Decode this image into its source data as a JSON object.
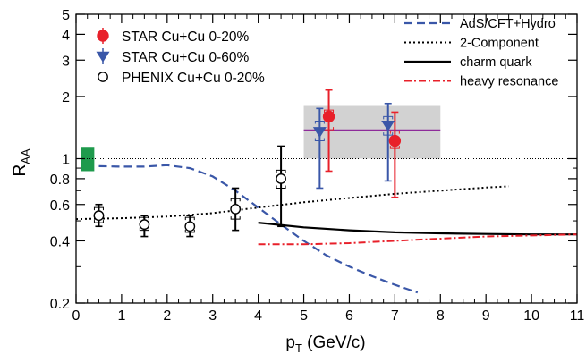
{
  "chart_data": {
    "type": "scatter",
    "xlabel_main": "p",
    "xlabel_sub": "T",
    "xlabel_unit": " (GeV/c)",
    "ylabel_main": "R",
    "ylabel_sub": "AA",
    "xlim": [
      0,
      11
    ],
    "ylim": [
      0.2,
      5
    ],
    "yscale": "log",
    "x_ticks": [
      "0",
      "1",
      "2",
      "3",
      "4",
      "5",
      "6",
      "7",
      "8",
      "9",
      "10",
      "11"
    ],
    "y_ticks": [
      {
        "value": 0.2,
        "label": "0.2"
      },
      {
        "value": 0.4,
        "label": "0.4"
      },
      {
        "value": 0.6,
        "label": "0.6"
      },
      {
        "value": 0.8,
        "label": "0.8"
      },
      {
        "value": 1,
        "label": "1"
      },
      {
        "value": 2,
        "label": "2"
      },
      {
        "value": 3,
        "label": "3"
      },
      {
        "value": 4,
        "label": "4"
      },
      {
        "value": 5,
        "label": "5"
      }
    ],
    "grid": false,
    "reference_line": 1,
    "markers": [
      {
        "name": "STAR Cu+Cu 0-20%",
        "color": "#e8202a",
        "marker": "circle-filled",
        "points": [
          {
            "x": 5.55,
            "y": 1.6,
            "err": [
              0.87,
              2.15
            ],
            "sys": [
              1.38,
              1.72
            ]
          },
          {
            "x": 7.0,
            "y": 1.22,
            "err": [
              0.65,
              1.68
            ],
            "sys": [
              1.12,
              1.36
            ]
          }
        ]
      },
      {
        "name": "STAR Cu+Cu 0-60%",
        "color": "#3a57a8",
        "marker": "triangle-down",
        "points": [
          {
            "x": 5.35,
            "y": 1.35,
            "err": [
              0.72,
              1.75
            ],
            "sys": [
              1.22,
              1.52
            ]
          },
          {
            "x": 6.85,
            "y": 1.45,
            "err": [
              0.78,
              1.85
            ],
            "sys": [
              1.3,
              1.6
            ]
          }
        ]
      },
      {
        "name": "PHENIX Cu+Cu 0-20%",
        "color": "#000000",
        "marker": "circle-open",
        "points": [
          {
            "x": 0.5,
            "y": 0.53,
            "err": [
              0.47,
              0.6
            ],
            "sys": [
              0.49,
              0.58
            ]
          },
          {
            "x": 1.5,
            "y": 0.48,
            "err": [
              0.42,
              0.53
            ],
            "sys": [
              0.45,
              0.52
            ]
          },
          {
            "x": 2.5,
            "y": 0.47,
            "err": [
              0.42,
              0.53
            ],
            "sys": [
              0.44,
              0.52
            ]
          },
          {
            "x": 3.5,
            "y": 0.57,
            "err": [
              0.45,
              0.72
            ],
            "sys": [
              0.51,
              0.64
            ]
          },
          {
            "x": 4.5,
            "y": 0.8,
            "err": [
              0.47,
              1.15
            ],
            "sys": [
              0.72,
              0.88
            ]
          }
        ]
      }
    ],
    "curves": [
      {
        "name": "AdS/CFT+Hydro",
        "color": "#3a57a8",
        "dash": "9,5",
        "width": 2.2,
        "x": [
          0.5,
          1.0,
          1.5,
          2.0,
          2.5,
          3.0,
          3.5,
          4.0,
          4.5,
          5.0,
          5.5,
          6.0,
          6.5,
          7.0,
          7.5
        ],
        "y": [
          0.92,
          0.915,
          0.915,
          0.93,
          0.9,
          0.82,
          0.7,
          0.58,
          0.48,
          0.4,
          0.34,
          0.3,
          0.27,
          0.245,
          0.225
        ]
      },
      {
        "name": "2-Component",
        "color": "#000000",
        "dash": "2,3",
        "width": 2.0,
        "x": [
          0,
          1,
          2,
          3,
          4,
          5,
          6,
          7,
          8,
          9,
          9.5
        ],
        "y": [
          0.51,
          0.515,
          0.525,
          0.545,
          0.58,
          0.615,
          0.645,
          0.675,
          0.7,
          0.725,
          0.735
        ]
      },
      {
        "name": "charm quark",
        "color": "#000000",
        "dash": "",
        "width": 2.2,
        "x": [
          4,
          5,
          6,
          7,
          8,
          9,
          10,
          11
        ],
        "y": [
          0.49,
          0.465,
          0.45,
          0.44,
          0.435,
          0.432,
          0.43,
          0.43
        ]
      },
      {
        "name": "heavy resonance",
        "color": "#e8202a",
        "dash": "8,3,2,3",
        "width": 2.0,
        "x": [
          4,
          5,
          6,
          7,
          8,
          9,
          10,
          11
        ],
        "y": [
          0.385,
          0.385,
          0.39,
          0.4,
          0.41,
          0.42,
          0.425,
          0.43
        ]
      }
    ],
    "bands": [
      {
        "x": [
          5,
          8
        ],
        "y": [
          1.0,
          1.8
        ],
        "color": "#d2d2d2",
        "mid": 1.37,
        "mid_color": "#8e2b9a"
      },
      {
        "x": [
          0.1,
          0.4
        ],
        "y": [
          0.87,
          1.13
        ],
        "color": "#1e9a4c"
      }
    ]
  }
}
